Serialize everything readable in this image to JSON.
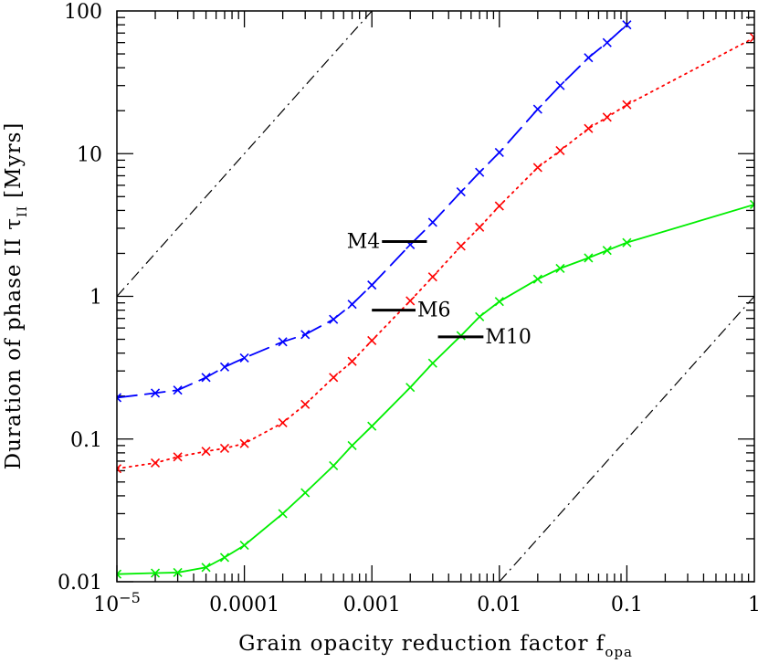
{
  "chart_data": {
    "type": "line",
    "xscale": "log",
    "yscale": "log",
    "xlim": [
      1e-05,
      1
    ],
    "ylim": [
      0.01,
      100
    ],
    "xlabel": "Grain opacity reduction factor f",
    "xlabel_sub": "opa",
    "ylabel": "Duration of phase II τ",
    "ylabel_sub": "II",
    "ylabel_unit": "[Myrs]",
    "x_ticks": [
      {
        "value": 1e-05,
        "base": "10",
        "exp": "−5"
      },
      {
        "value": 0.0001,
        "label": "0.0001"
      },
      {
        "value": 0.001,
        "label": "0.001"
      },
      {
        "value": 0.01,
        "label": "0.01"
      },
      {
        "value": 0.1,
        "label": "0.1"
      },
      {
        "value": 1,
        "label": "1"
      }
    ],
    "y_ticks": [
      {
        "value": 0.01,
        "label": "0.01"
      },
      {
        "value": 0.1,
        "label": "0.1"
      },
      {
        "value": 1,
        "label": "1"
      },
      {
        "value": 10,
        "label": "10"
      },
      {
        "value": 100,
        "label": "100"
      }
    ],
    "series": [
      {
        "color": "#0000ff",
        "style": "dashed",
        "x": [
          1e-05,
          2e-05,
          3e-05,
          5e-05,
          7e-05,
          0.0001,
          0.0002,
          0.0003,
          0.0005,
          0.0007,
          0.001,
          0.002,
          0.003,
          0.005,
          0.007,
          0.01,
          0.02,
          0.03,
          0.05,
          0.07,
          0.1
        ],
        "y": [
          0.195,
          0.21,
          0.22,
          0.27,
          0.32,
          0.37,
          0.48,
          0.54,
          0.69,
          0.88,
          1.2,
          2.3,
          3.3,
          5.4,
          7.4,
          10.2,
          20.5,
          30,
          47,
          60,
          80
        ]
      },
      {
        "color": "#ff0000",
        "style": "dotted",
        "x": [
          1e-05,
          2e-05,
          3e-05,
          5e-05,
          7e-05,
          0.0001,
          0.0002,
          0.0003,
          0.0005,
          0.0007,
          0.001,
          0.002,
          0.003,
          0.005,
          0.007,
          0.01,
          0.02,
          0.03,
          0.05,
          0.07,
          0.1,
          1
        ],
        "y": [
          0.062,
          0.068,
          0.075,
          0.082,
          0.086,
          0.093,
          0.13,
          0.175,
          0.27,
          0.35,
          0.49,
          0.93,
          1.37,
          2.25,
          3.05,
          4.3,
          8,
          10.5,
          15,
          18,
          22,
          65
        ]
      },
      {
        "color": "#00ee00",
        "style": "solid",
        "x": [
          1e-05,
          2e-05,
          3e-05,
          5e-05,
          7e-05,
          0.0001,
          0.0002,
          0.0003,
          0.0005,
          0.0007,
          0.001,
          0.002,
          0.003,
          0.005,
          0.007,
          0.01,
          0.02,
          0.03,
          0.05,
          0.07,
          0.1,
          1
        ],
        "y": [
          0.0113,
          0.0115,
          0.0116,
          0.0126,
          0.0148,
          0.018,
          0.03,
          0.042,
          0.065,
          0.09,
          0.123,
          0.23,
          0.34,
          0.53,
          0.72,
          0.92,
          1.32,
          1.57,
          1.86,
          2.1,
          2.38,
          4.4
        ]
      }
    ],
    "reference_lines": [
      {
        "style": "dashdot",
        "color": "#000000",
        "x": [
          1e-05,
          0.001
        ],
        "y": [
          1,
          100
        ]
      },
      {
        "style": "dashdot",
        "color": "#000000",
        "x": [
          0.01,
          1
        ],
        "y": [
          0.01,
          1
        ]
      }
    ],
    "annotations": [
      {
        "text": "M4",
        "bar_x": [
          0.0012,
          0.0027
        ],
        "y": 2.42
      },
      {
        "text": "M6",
        "bar_x": [
          0.001,
          0.0022
        ],
        "y": 0.8
      },
      {
        "text": "M10",
        "bar_x": [
          0.0033,
          0.0075
        ],
        "y": 0.52
      }
    ]
  }
}
